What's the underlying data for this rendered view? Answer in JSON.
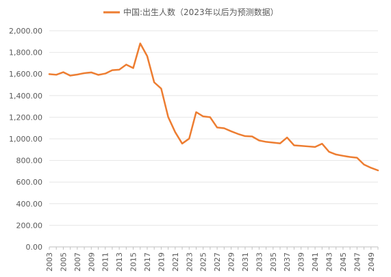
{
  "chart_data": {
    "type": "line",
    "title": "",
    "xlabel": "",
    "ylabel": "",
    "legend": {
      "placement": "top",
      "entries": [
        "中国:出生人数（2023年以后为预测数据）"
      ]
    },
    "grid": {
      "y": true,
      "x": false
    },
    "ylim": [
      0,
      2000
    ],
    "yticks": [
      "0.00",
      "200.00",
      "400.00",
      "600.00",
      "800.00",
      "1,000.00",
      "1,200.00",
      "1,400.00",
      "1,600.00",
      "1,800.00",
      "2,000.00"
    ],
    "xtick_labels": [
      "2003",
      "2005",
      "2007",
      "2009",
      "2011",
      "2013",
      "2015",
      "2017",
      "2019",
      "2021",
      "2023",
      "2025",
      "2027",
      "2029",
      "2031",
      "2033",
      "2035",
      "2037",
      "2039",
      "2041",
      "2043",
      "2045",
      "2047",
      "2049"
    ],
    "x": [
      2003,
      2004,
      2005,
      2006,
      2007,
      2008,
      2009,
      2010,
      2011,
      2012,
      2013,
      2014,
      2015,
      2016,
      2017,
      2018,
      2019,
      2020,
      2021,
      2022,
      2023,
      2024,
      2025,
      2026,
      2027,
      2028,
      2029,
      2030,
      2031,
      2032,
      2033,
      2034,
      2035,
      2036,
      2037,
      2038,
      2039,
      2040,
      2041,
      2042,
      2043,
      2044,
      2045,
      2046,
      2047,
      2048,
      2049,
      2050
    ],
    "series": [
      {
        "name": "中国:出生人数（2023年以后为预测数据）",
        "color": "#ed7d31",
        "values": [
          1599,
          1593,
          1617,
          1585,
          1595,
          1608,
          1615,
          1592,
          1604,
          1635,
          1640,
          1687,
          1655,
          1883,
          1765,
          1523,
          1465,
          1202,
          1062,
          956,
          1002,
          1247,
          1208,
          1200,
          1105,
          1098,
          1070,
          1045,
          1025,
          1022,
          985,
          972,
          965,
          958,
          1012,
          940,
          935,
          930,
          925,
          955,
          880,
          855,
          843,
          832,
          825,
          762,
          732,
          708
        ]
      }
    ]
  }
}
